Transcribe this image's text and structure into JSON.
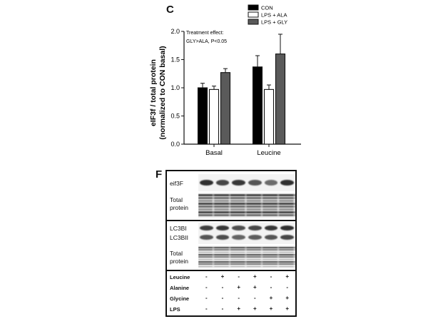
{
  "panel_c": {
    "letter": "C",
    "annotation": {
      "line1": "Treatment effect:",
      "line2": "GLY>ALA, P<0.05"
    }
  },
  "chart_data": {
    "type": "bar",
    "ylabel_line1": "eIF3f / total protein",
    "ylabel_line2": "(normalized to CON basal)",
    "categories": [
      "Basal",
      "Leucine"
    ],
    "ylim": [
      0,
      2.0
    ],
    "yticks": [
      "0.0",
      "0.5",
      "1.0",
      "1.5",
      "2.0"
    ],
    "legend_position": "top-right",
    "series": [
      {
        "name": "CON",
        "color": "#000000",
        "values": [
          1.0,
          1.37
        ],
        "errors": [
          0.08,
          0.2
        ]
      },
      {
        "name": "LPS + ALA",
        "color": "#ffffff",
        "values": [
          0.97,
          0.97
        ],
        "errors": [
          0.06,
          0.08
        ]
      },
      {
        "name": "LPS + GLY",
        "color": "#5a5a5a",
        "values": [
          1.27,
          1.6
        ],
        "errors": [
          0.07,
          0.35
        ]
      }
    ]
  },
  "panel_f": {
    "letter": "F",
    "row_labels": {
      "eif3f": "eif3F",
      "total1_line1": "Total",
      "total1_line2": "protein",
      "lc3bi": "LC3BI",
      "lc3bii": "LC3BII",
      "total2_line1": "Total",
      "total2_line2": "protein"
    },
    "treatment_grid": [
      {
        "label": "Leucine",
        "values": [
          "-",
          "+",
          "-",
          "+",
          "-",
          "+"
        ]
      },
      {
        "label": "Alanine",
        "values": [
          "-",
          "-",
          "+",
          "+",
          "-",
          "-"
        ]
      },
      {
        "label": "Glycine",
        "values": [
          "-",
          "-",
          "-",
          "-",
          "+",
          "+"
        ]
      },
      {
        "label": "LPS",
        "values": [
          "-",
          "-",
          "+",
          "+",
          "+",
          "+"
        ]
      }
    ]
  }
}
